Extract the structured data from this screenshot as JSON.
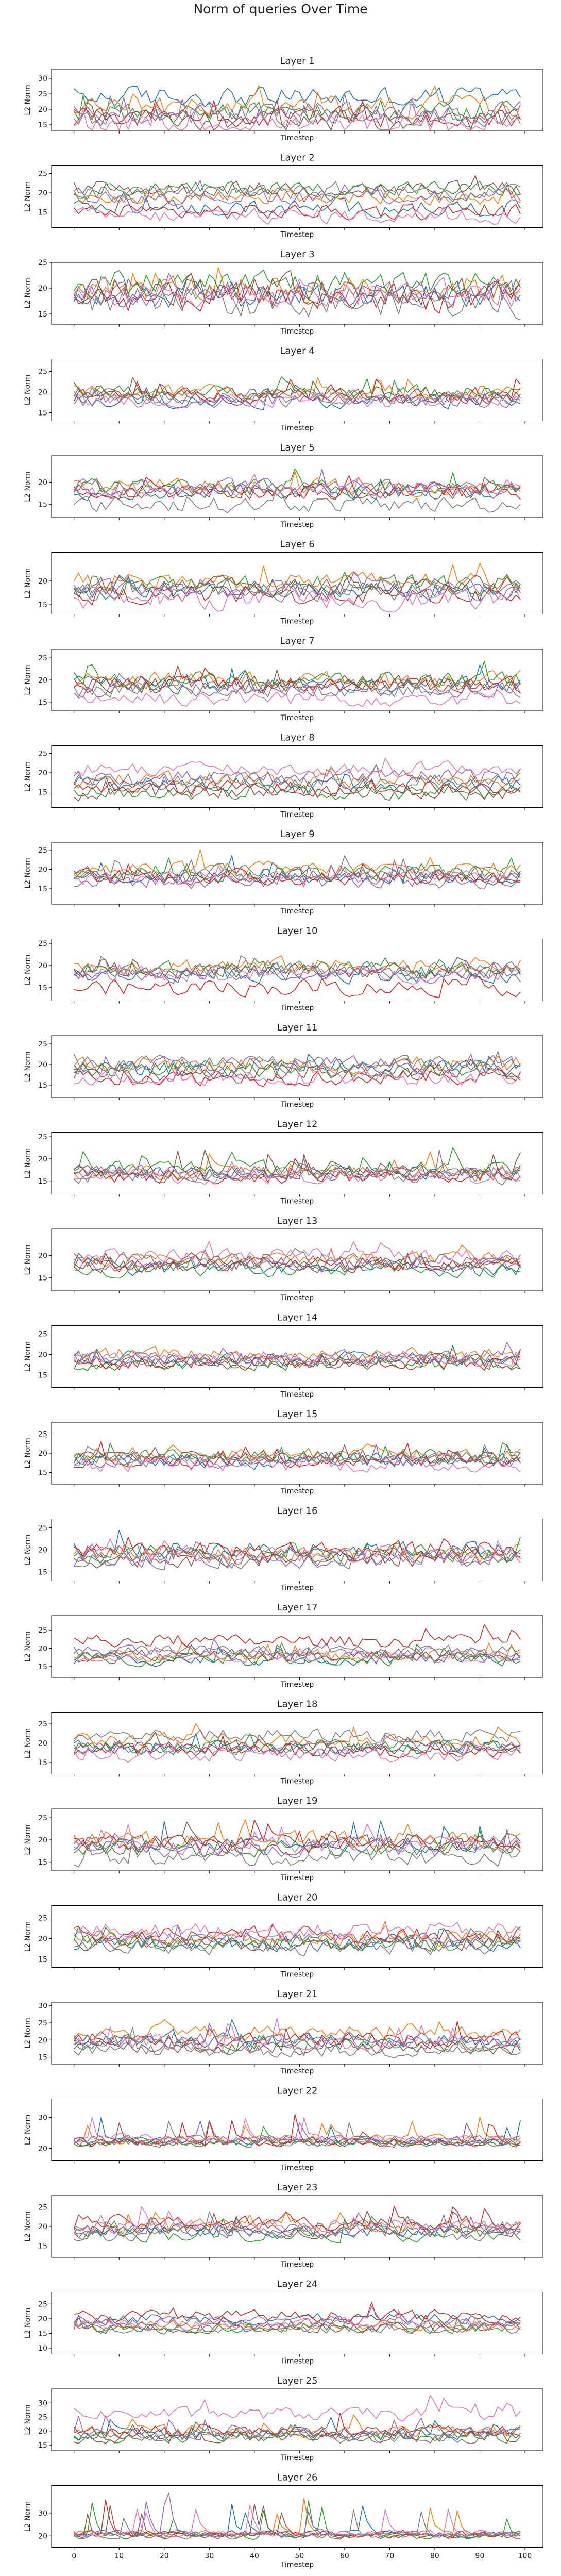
{
  "figure": {
    "title": "Norm of queries Over Time"
  },
  "colors": [
    "#1f77b4",
    "#ff7f0e",
    "#2ca02c",
    "#d62728",
    "#9467bd",
    "#8c564b",
    "#e377c2",
    "#7f7f7f"
  ],
  "chart_data": {
    "type": "line",
    "x_range": [
      0,
      99
    ],
    "xlim": [
      -5,
      104
    ],
    "x_ticks": [
      0,
      10,
      20,
      30,
      40,
      50,
      60,
      70,
      80,
      90,
      100
    ],
    "xlabel": "Timestep",
    "ylabel": "L2 Norm",
    "grid": false,
    "legend": "none",
    "n_series": 8,
    "panels": [
      {
        "title": "Layer 1",
        "ylim": [
          13,
          33
        ],
        "yticks": [
          15,
          20,
          25,
          30
        ],
        "base": [
          24,
          21,
          19,
          17,
          19,
          16,
          15,
          18
        ],
        "amp": 3.0,
        "spike": 6
      },
      {
        "title": "Layer 2",
        "ylim": [
          11,
          27
        ],
        "yticks": [
          15,
          20,
          25
        ],
        "base": [
          16,
          19,
          21,
          15,
          19,
          21,
          14,
          20
        ],
        "amp": 1.8,
        "spike": 2
      },
      {
        "title": "Layer 3",
        "ylim": [
          13,
          25
        ],
        "yticks": [
          15,
          20,
          25
        ],
        "base": [
          19,
          20,
          21,
          18,
          19,
          20,
          19,
          17
        ],
        "amp": 2.4,
        "spike": 2
      },
      {
        "title": "Layer 4",
        "ylim": [
          13,
          28
        ],
        "yticks": [
          15,
          20,
          25
        ],
        "base": [
          18,
          20,
          20,
          19,
          18,
          19,
          18,
          19
        ],
        "amp": 1.6,
        "spike": 3
      },
      {
        "title": "Layer 5",
        "ylim": [
          12,
          26
        ],
        "yticks": [
          15,
          20
        ],
        "base": [
          18,
          19,
          19,
          18,
          19,
          18,
          18,
          15
        ],
        "amp": 1.6,
        "spike": 3
      },
      {
        "title": "Layer 6",
        "ylim": [
          13,
          26
        ],
        "yticks": [
          15,
          20
        ],
        "base": [
          18,
          20,
          19,
          17,
          18,
          19,
          16,
          18
        ],
        "amp": 1.8,
        "spike": 2
      },
      {
        "title": "Layer 7",
        "ylim": [
          13,
          27
        ],
        "yticks": [
          15,
          20,
          25
        ],
        "base": [
          19,
          20,
          20,
          19,
          18,
          19,
          16,
          18
        ],
        "amp": 1.7,
        "spike": 3
      },
      {
        "title": "Layer 8",
        "ylim": [
          11,
          27
        ],
        "yticks": [
          15,
          20,
          25
        ],
        "base": [
          17,
          18,
          15,
          16,
          19,
          15,
          21,
          18
        ],
        "amp": 1.8,
        "spike": 2
      },
      {
        "title": "Layer 9",
        "ylim": [
          11,
          27
        ],
        "yticks": [
          15,
          20,
          25
        ],
        "base": [
          18,
          20,
          19,
          18,
          17,
          18,
          18,
          19
        ],
        "amp": 1.8,
        "spike": 4
      },
      {
        "title": "Layer 10",
        "ylim": [
          12,
          26
        ],
        "yticks": [
          15,
          20,
          25
        ],
        "base": [
          18,
          20,
          19,
          15,
          18,
          19,
          18,
          19
        ],
        "amp": 1.6,
        "spike": 2
      },
      {
        "title": "Layer 11",
        "ylim": [
          12,
          27
        ],
        "yticks": [
          15,
          20,
          25
        ],
        "base": [
          19,
          20,
          19,
          17,
          20,
          18,
          17,
          20
        ],
        "amp": 1.8,
        "spike": 2
      },
      {
        "title": "Layer 12",
        "ylim": [
          12,
          26
        ],
        "yticks": [
          15,
          20,
          25
        ],
        "base": [
          17,
          17,
          18,
          16,
          17,
          17,
          16,
          16
        ],
        "amp": 1.5,
        "spike": 4
      },
      {
        "title": "Layer 13",
        "ylim": [
          12,
          26
        ],
        "yticks": [
          15,
          20
        ],
        "base": [
          17,
          19,
          17,
          18,
          18,
          18,
          20,
          19
        ],
        "amp": 1.5,
        "spike": 2
      },
      {
        "title": "Layer 14",
        "ylim": [
          12,
          27
        ],
        "yticks": [
          15,
          20,
          25
        ],
        "base": [
          19,
          20,
          18,
          18,
          19,
          18,
          19,
          19
        ],
        "amp": 1.6,
        "spike": 3
      },
      {
        "title": "Layer 15",
        "ylim": [
          12,
          28
        ],
        "yticks": [
          15,
          20,
          25
        ],
        "base": [
          18,
          20,
          19,
          18,
          18,
          19,
          17,
          19
        ],
        "amp": 1.7,
        "spike": 3
      },
      {
        "title": "Layer 16",
        "ylim": [
          13,
          27
        ],
        "yticks": [
          15,
          20,
          25
        ],
        "base": [
          20,
          19,
          19,
          20,
          18,
          18,
          19,
          18
        ],
        "amp": 1.8,
        "spike": 3
      },
      {
        "title": "Layer 17",
        "ylim": [
          12,
          29
        ],
        "yticks": [
          15,
          20,
          25
        ],
        "base": [
          17,
          18,
          17,
          22,
          19,
          18,
          18,
          19
        ],
        "amp": 1.5,
        "spike": 3
      },
      {
        "title": "Layer 18",
        "ylim": [
          12,
          28
        ],
        "yticks": [
          15,
          20,
          25
        ],
        "base": [
          19,
          21,
          19,
          18,
          19,
          19,
          17,
          22
        ],
        "amp": 1.6,
        "spike": 3
      },
      {
        "title": "Layer 19",
        "ylim": [
          13,
          27
        ],
        "yticks": [
          15,
          20,
          25
        ],
        "base": [
          19,
          20,
          18,
          19,
          18,
          19,
          19,
          16
        ],
        "amp": 1.7,
        "spike": 4
      },
      {
        "title": "Layer 20",
        "ylim": [
          13,
          28
        ],
        "yticks": [
          15,
          20,
          25
        ],
        "base": [
          19,
          20,
          19,
          21,
          20,
          19,
          22,
          18
        ],
        "amp": 1.7,
        "spike": 3
      },
      {
        "title": "Layer 21",
        "ylim": [
          13,
          31
        ],
        "yticks": [
          15,
          20,
          25,
          30
        ],
        "base": [
          20,
          22,
          19,
          20,
          20,
          18,
          19,
          17
        ],
        "amp": 2.0,
        "spike": 5
      },
      {
        "title": "Layer 22",
        "ylim": [
          16,
          36
        ],
        "yticks": [
          20,
          30
        ],
        "base": [
          22,
          23,
          22,
          22,
          23,
          22,
          23,
          22
        ],
        "amp": 1.3,
        "spike": 8
      },
      {
        "title": "Layer 23",
        "ylim": [
          12,
          28
        ],
        "yticks": [
          15,
          20,
          25
        ],
        "base": [
          19,
          20,
          18,
          21,
          19,
          19,
          20,
          18
        ],
        "amp": 1.6,
        "spike": 4
      },
      {
        "title": "Layer 24",
        "ylim": [
          8,
          29
        ],
        "yticks": [
          10,
          15,
          20,
          25
        ],
        "base": [
          20,
          18,
          17,
          21,
          19,
          17,
          18,
          17
        ],
        "amp": 1.7,
        "spike": 4
      },
      {
        "title": "Layer 25",
        "ylim": [
          13,
          35
        ],
        "yticks": [
          15,
          20,
          25,
          30
        ],
        "base": [
          19,
          20,
          18,
          20,
          19,
          18,
          26,
          18
        ],
        "amp": 2.0,
        "spike": 5
      },
      {
        "title": "Layer 26",
        "ylim": [
          15,
          42
        ],
        "yticks": [
          20,
          30
        ],
        "base": [
          21,
          21,
          20,
          21,
          21,
          20,
          21,
          20
        ],
        "amp": 1.2,
        "spike": 15
      }
    ]
  }
}
